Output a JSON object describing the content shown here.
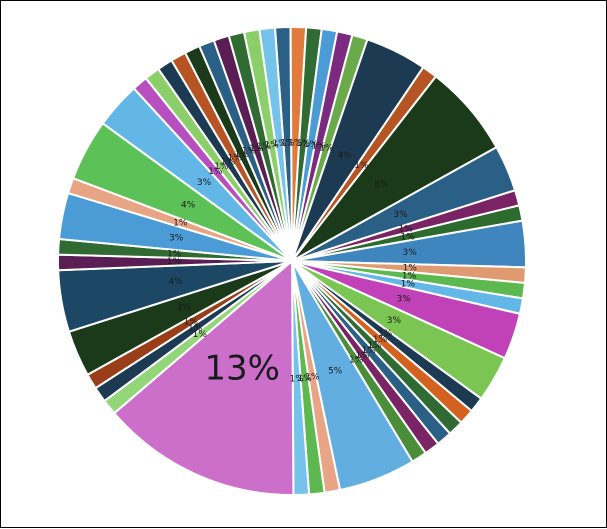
{
  "chart_data": {
    "type": "pie",
    "title": "",
    "slices": [
      {
        "value": 1,
        "label": "1%",
        "color": "#2a5f86"
      },
      {
        "value": 1,
        "label": "1%",
        "color": "#e07b3c"
      },
      {
        "value": 1,
        "label": "1%",
        "color": "#2f6b33"
      },
      {
        "value": 1,
        "label": "1%",
        "color": "#4a9bd6"
      },
      {
        "value": 1,
        "label": "1%",
        "color": "#7a2b80"
      },
      {
        "value": 1,
        "label": "1%",
        "color": "#6aaa4a"
      },
      {
        "value": 4,
        "label": "4%",
        "color": "#1c3a52"
      },
      {
        "value": 1,
        "label": "1%",
        "color": "#b65424"
      },
      {
        "value": 6,
        "label": "6%",
        "color": "#1b3a1a"
      },
      {
        "value": 3,
        "label": "3%",
        "color": "#2a5f86"
      },
      {
        "value": 1,
        "label": "1%",
        "color": "#7a2466"
      },
      {
        "value": 1,
        "label": "1%",
        "color": "#2c6a2e"
      },
      {
        "value": 3,
        "label": "3%",
        "color": "#3f86be"
      },
      {
        "value": 1,
        "label": "1%",
        "color": "#e09a72"
      },
      {
        "value": 1,
        "label": "1%",
        "color": "#5cb84f"
      },
      {
        "value": 1,
        "label": "1%",
        "color": "#62b7e6"
      },
      {
        "value": 3,
        "label": "3%",
        "color": "#c142b8"
      },
      {
        "value": 3,
        "label": "3%",
        "color": "#7bc652"
      },
      {
        "value": 1,
        "label": "1%",
        "color": "#1c3a52"
      },
      {
        "value": 1,
        "label": "1%",
        "color": "#d4611f"
      },
      {
        "value": 1,
        "label": "1%",
        "color": "#2f6b33"
      },
      {
        "value": 1,
        "label": "1%",
        "color": "#2a5f86"
      },
      {
        "value": 1,
        "label": "1%",
        "color": "#7a2466"
      },
      {
        "value": 1,
        "label": "1%",
        "color": "#4a8e3a"
      },
      {
        "value": 5,
        "label": "5%",
        "color": "#62aee0"
      },
      {
        "value": 1,
        "label": "1%",
        "color": "#e8a585"
      },
      {
        "value": 1,
        "label": "1%",
        "color": "#5cb84f"
      },
      {
        "value": 1,
        "label": "1%",
        "color": "#75c2eb"
      },
      {
        "value": 13,
        "label": "13%",
        "color": "#cb6fcb"
      },
      {
        "value": 1,
        "label": "1%",
        "color": "#93d67a"
      },
      {
        "value": 1,
        "label": "1%",
        "color": "#1c3a52"
      },
      {
        "value": 1,
        "label": "1%",
        "color": "#9a3e1a"
      },
      {
        "value": 3,
        "label": "3%",
        "color": "#1b3a1a"
      },
      {
        "value": 4,
        "label": "4%",
        "color": "#1c4866"
      },
      {
        "value": 1,
        "label": "1%",
        "color": "#5a1e55"
      },
      {
        "value": 1,
        "label": "1%",
        "color": "#2f6b33"
      },
      {
        "value": 3,
        "label": "3%",
        "color": "#4a9bd6"
      },
      {
        "value": 1,
        "label": "1%",
        "color": "#e8a585"
      },
      {
        "value": 4,
        "label": "4%",
        "color": "#5cc257"
      },
      {
        "value": 3,
        "label": "3%",
        "color": "#62b7e6"
      },
      {
        "value": 1,
        "label": "1%",
        "color": "#b84fc0"
      },
      {
        "value": 1,
        "label": "1%",
        "color": "#8ccf6a"
      },
      {
        "value": 1,
        "label": "1%",
        "color": "#1c3a52"
      },
      {
        "value": 1,
        "label": "1%",
        "color": "#b65424"
      },
      {
        "value": 1,
        "label": "1%",
        "color": "#1b3a1a"
      },
      {
        "value": 1,
        "label": "1%",
        "color": "#2a5f86"
      },
      {
        "value": 1,
        "label": "1%",
        "color": "#5a1e55"
      },
      {
        "value": 1,
        "label": "1%",
        "color": "#2f6b33"
      },
      {
        "value": 1,
        "label": "1%",
        "color": "#8ccf6a"
      },
      {
        "value": 1,
        "label": "1%",
        "color": "#75c2eb"
      }
    ],
    "legend": "none",
    "slice_border_color": "#ffffff"
  }
}
